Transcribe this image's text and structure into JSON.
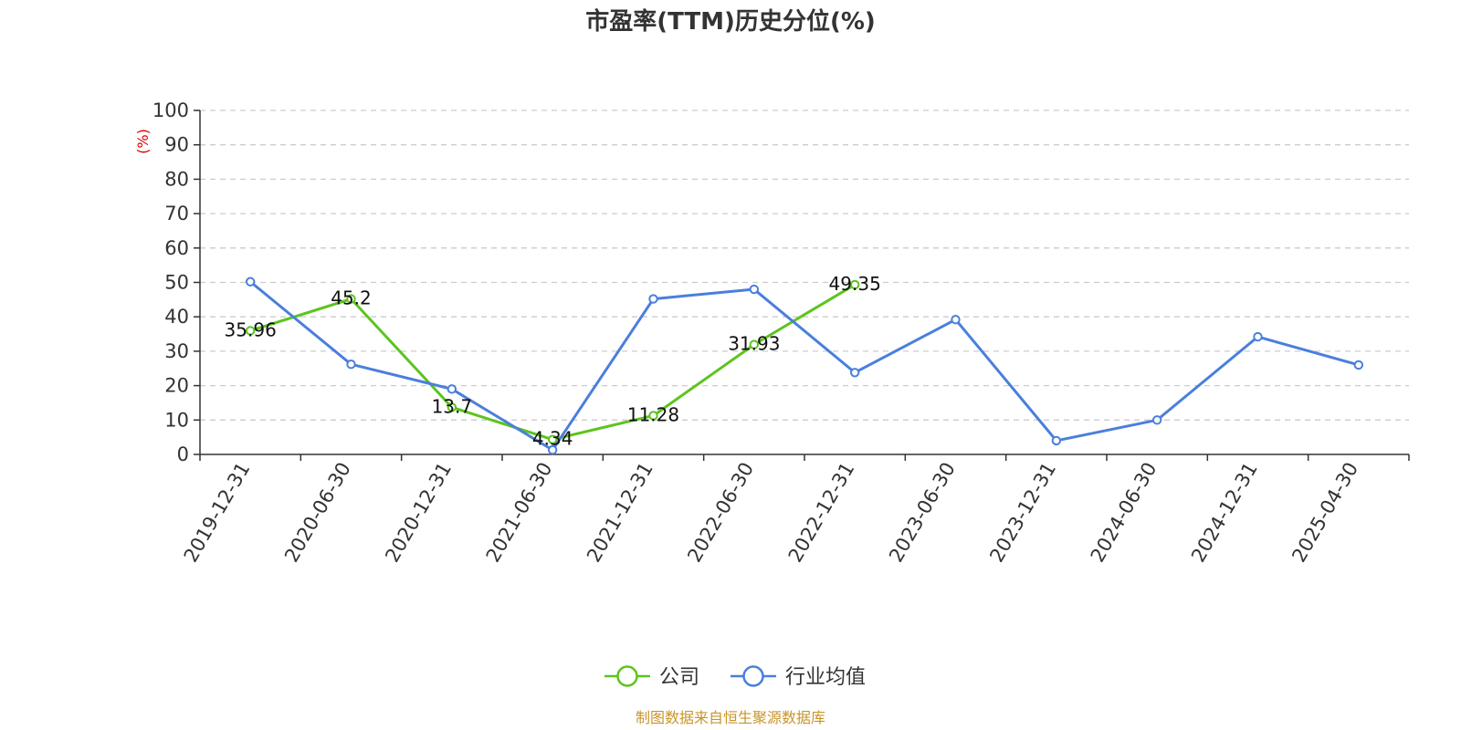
{
  "chart_data": {
    "type": "line",
    "title": "市盈率(TTM)历史分位(%)",
    "ylabel": "(%)",
    "xlabel": "",
    "ylim": [
      0,
      100
    ],
    "yticks": [
      0,
      10,
      20,
      30,
      40,
      50,
      60,
      70,
      80,
      90,
      100
    ],
    "grid": true,
    "legend_position": "bottom",
    "categories": [
      "2019-12-31",
      "2020-06-30",
      "2020-12-31",
      "2021-06-30",
      "2021-12-31",
      "2022-06-30",
      "2022-12-31",
      "2023-06-30",
      "2023-12-31",
      "2024-06-30",
      "2024-12-31",
      "2025-04-30"
    ],
    "series": [
      {
        "name": "公司",
        "color": "#5cc41e",
        "values": [
          35.96,
          45.2,
          13.7,
          4.34,
          11.28,
          31.93,
          49.35,
          null,
          null,
          null,
          null,
          null
        ],
        "labels": [
          "35.96",
          "45.2",
          "13.7",
          "4.34",
          "11.28",
          "31.93",
          "49.35",
          null,
          null,
          null,
          null,
          null
        ]
      },
      {
        "name": "行业均值",
        "color": "#4a7fdc",
        "values": [
          50.2,
          26.2,
          19.0,
          1.3,
          45.2,
          48.0,
          23.8,
          39.2,
          4.0,
          10.0,
          34.2,
          26.0
        ]
      }
    ],
    "source": "制图数据来自恒生聚源数据库"
  }
}
